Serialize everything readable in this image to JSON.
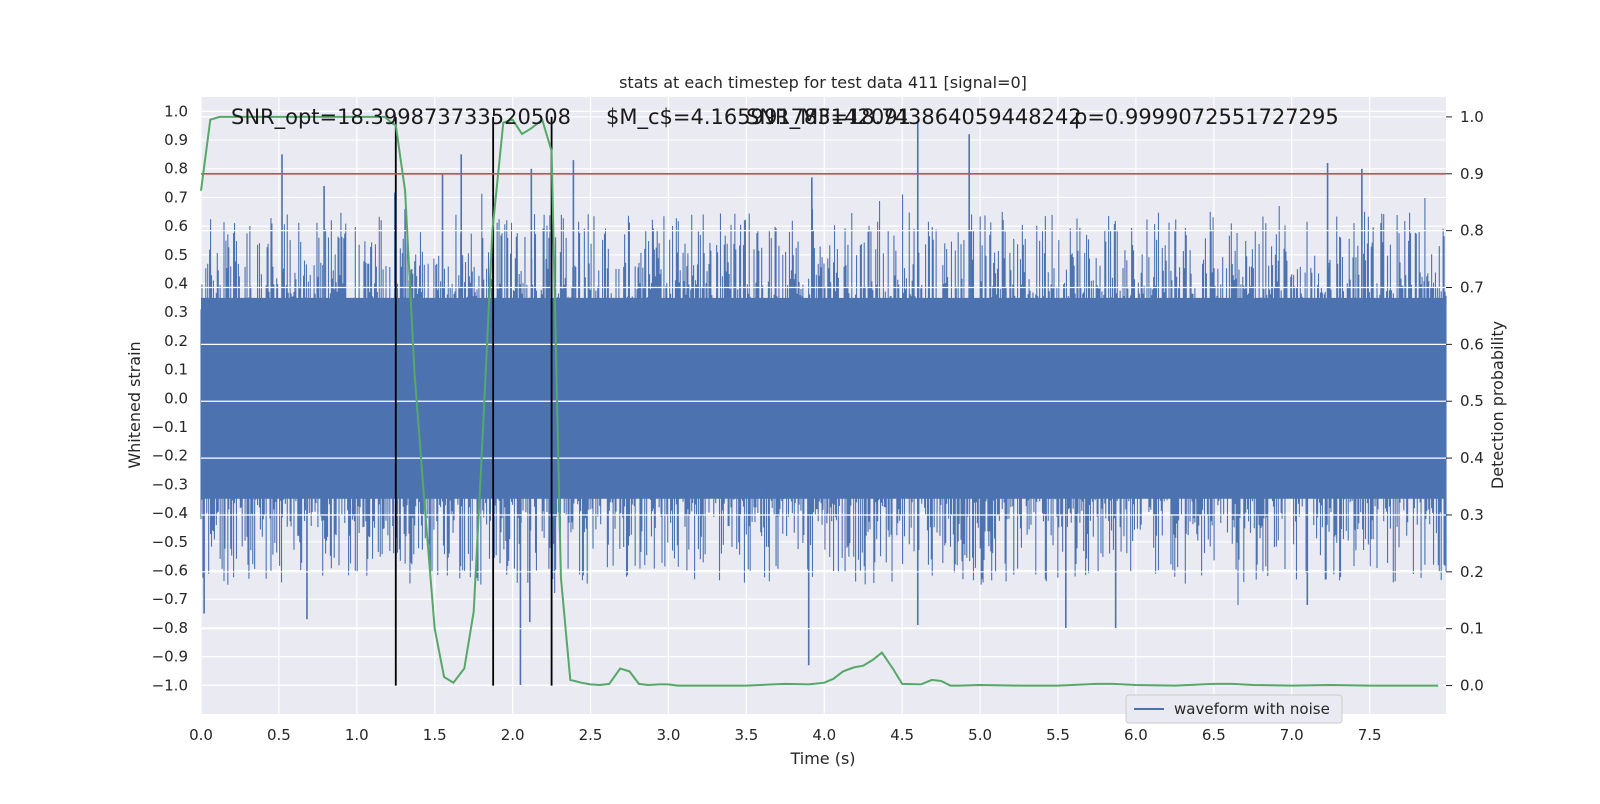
{
  "chart_data": {
    "type": "line",
    "title": "stats at each timestep for test data 411 [signal=0]",
    "xlabel": "Time (s)",
    "ylabel_left": "Whitened strain",
    "ylabel_right": "Detection probability",
    "xlim": [
      0.0,
      7.99
    ],
    "ylim_left": [
      -1.1,
      1.05
    ],
    "ylim_right": [
      -0.05,
      1.035
    ],
    "x_ticks": [
      "0.0",
      "0.5",
      "1.0",
      "1.5",
      "2.0",
      "2.5",
      "3.0",
      "3.5",
      "4.0",
      "4.5",
      "5.0",
      "5.5",
      "6.0",
      "6.5",
      "7.0",
      "7.5"
    ],
    "y_left_ticks": [
      "1.0",
      "0.9",
      "0.8",
      "0.7",
      "0.6",
      "0.5",
      "0.4",
      "0.3",
      "0.2",
      "0.1",
      "0.0",
      "−0.1",
      "−0.2",
      "−0.3",
      "−0.4",
      "−0.5",
      "−0.6",
      "−0.7",
      "−0.8",
      "−0.9",
      "−1.0"
    ],
    "y_right_ticks": [
      "1.0",
      "0.9",
      "0.8",
      "0.7",
      "0.6",
      "0.5",
      "0.4",
      "0.3",
      "0.2",
      "0.1",
      "0.0"
    ],
    "grid": true,
    "legend": {
      "placement": "lower-right",
      "entries": [
        "waveform with noise"
      ]
    },
    "annotations": [
      "SNR_opt=18.399873733520508",
      "$M_c$=4.165991783142091",
      "SNR_MF=18.743864059448242",
      "p=0.9999072551727295"
    ],
    "threshold": 0.9,
    "vertical_markers_s": [
      1.25,
      1.875,
      2.25
    ],
    "waveform": {
      "name": "waveform with noise",
      "color": "#4c72b0",
      "description_stats": {
        "core_low": -0.45,
        "core_high": 0.45,
        "typical_peak_high": 0.65,
        "typical_peak_low": -0.65
      },
      "notable_peaks": [
        {
          "t": 0.52,
          "y": 0.85
        },
        {
          "t": 0.79,
          "y": 0.74
        },
        {
          "t": 1.31,
          "y": 0.66
        },
        {
          "t": 1.55,
          "y": 0.78
        },
        {
          "t": 1.67,
          "y": 0.85
        },
        {
          "t": 2.12,
          "y": 0.8
        },
        {
          "t": 2.39,
          "y": 0.83
        },
        {
          "t": 3.92,
          "y": 0.77
        },
        {
          "t": 4.6,
          "y": 0.96
        },
        {
          "t": 4.93,
          "y": 0.92
        },
        {
          "t": 7.23,
          "y": 0.82
        },
        {
          "t": 7.45,
          "y": 0.8
        },
        {
          "t": 0.02,
          "y": -0.75
        },
        {
          "t": 0.68,
          "y": -0.77
        },
        {
          "t": 1.47,
          "y": -0.6
        },
        {
          "t": 2.05,
          "y": -1.0
        },
        {
          "t": 2.11,
          "y": -0.78
        },
        {
          "t": 3.9,
          "y": -0.93
        },
        {
          "t": 4.6,
          "y": -0.79
        },
        {
          "t": 5.55,
          "y": -0.8
        },
        {
          "t": 5.87,
          "y": -0.8
        },
        {
          "t": 7.1,
          "y": -0.72
        }
      ]
    },
    "probability": {
      "name": "Detection probability",
      "color": "#55a868",
      "x": [
        0.0,
        0.06,
        0.12,
        0.18,
        0.25,
        0.31,
        0.37,
        0.44,
        0.5,
        0.56,
        0.62,
        0.69,
        0.75,
        0.81,
        0.87,
        0.94,
        1.0,
        1.06,
        1.12,
        1.18,
        1.22,
        1.25,
        1.31,
        1.37,
        1.44,
        1.5,
        1.56,
        1.62,
        1.69,
        1.75,
        1.81,
        1.87,
        1.94,
        2.0,
        2.06,
        2.12,
        2.19,
        2.25,
        2.31,
        2.37,
        2.44,
        2.5,
        2.56,
        2.62,
        2.69,
        2.75,
        2.81,
        2.87,
        2.94,
        3.0,
        3.06,
        3.12,
        3.25,
        3.5,
        3.75,
        3.9,
        4.0,
        4.06,
        4.12,
        4.19,
        4.25,
        4.31,
        4.37,
        4.44,
        4.5,
        4.62,
        4.69,
        4.75,
        4.81,
        4.87,
        5.0,
        5.25,
        5.5,
        5.75,
        5.85,
        6.0,
        6.25,
        6.5,
        6.62,
        6.75,
        7.0,
        7.25,
        7.5,
        7.75,
        7.94
      ],
      "y": [
        0.87,
        0.995,
        1.0,
        1.0,
        1.0,
        1.0,
        1.0,
        1.0,
        1.0,
        1.0,
        1.0,
        1.0,
        1.0,
        1.0,
        1.0,
        1.0,
        1.0,
        1.0,
        1.0,
        1.0,
        0.99,
        0.985,
        0.87,
        0.55,
        0.3,
        0.1,
        0.015,
        0.005,
        0.03,
        0.13,
        0.45,
        0.8,
        0.99,
        0.995,
        0.97,
        0.98,
        0.995,
        0.94,
        0.19,
        0.01,
        0.005,
        0.002,
        0.001,
        0.003,
        0.03,
        0.025,
        0.003,
        0.001,
        0.002,
        0.002,
        0.0,
        0.0,
        0.0,
        0.0,
        0.003,
        0.002,
        0.005,
        0.012,
        0.025,
        0.032,
        0.035,
        0.045,
        0.058,
        0.03,
        0.003,
        0.002,
        0.01,
        0.008,
        0.0,
        0.0,
        0.001,
        0.0,
        0.0,
        0.003,
        0.003,
        0.001,
        0.0,
        0.003,
        0.003,
        0.001,
        0.0,
        0.001,
        0.0,
        0.0,
        0.0
      ]
    }
  }
}
